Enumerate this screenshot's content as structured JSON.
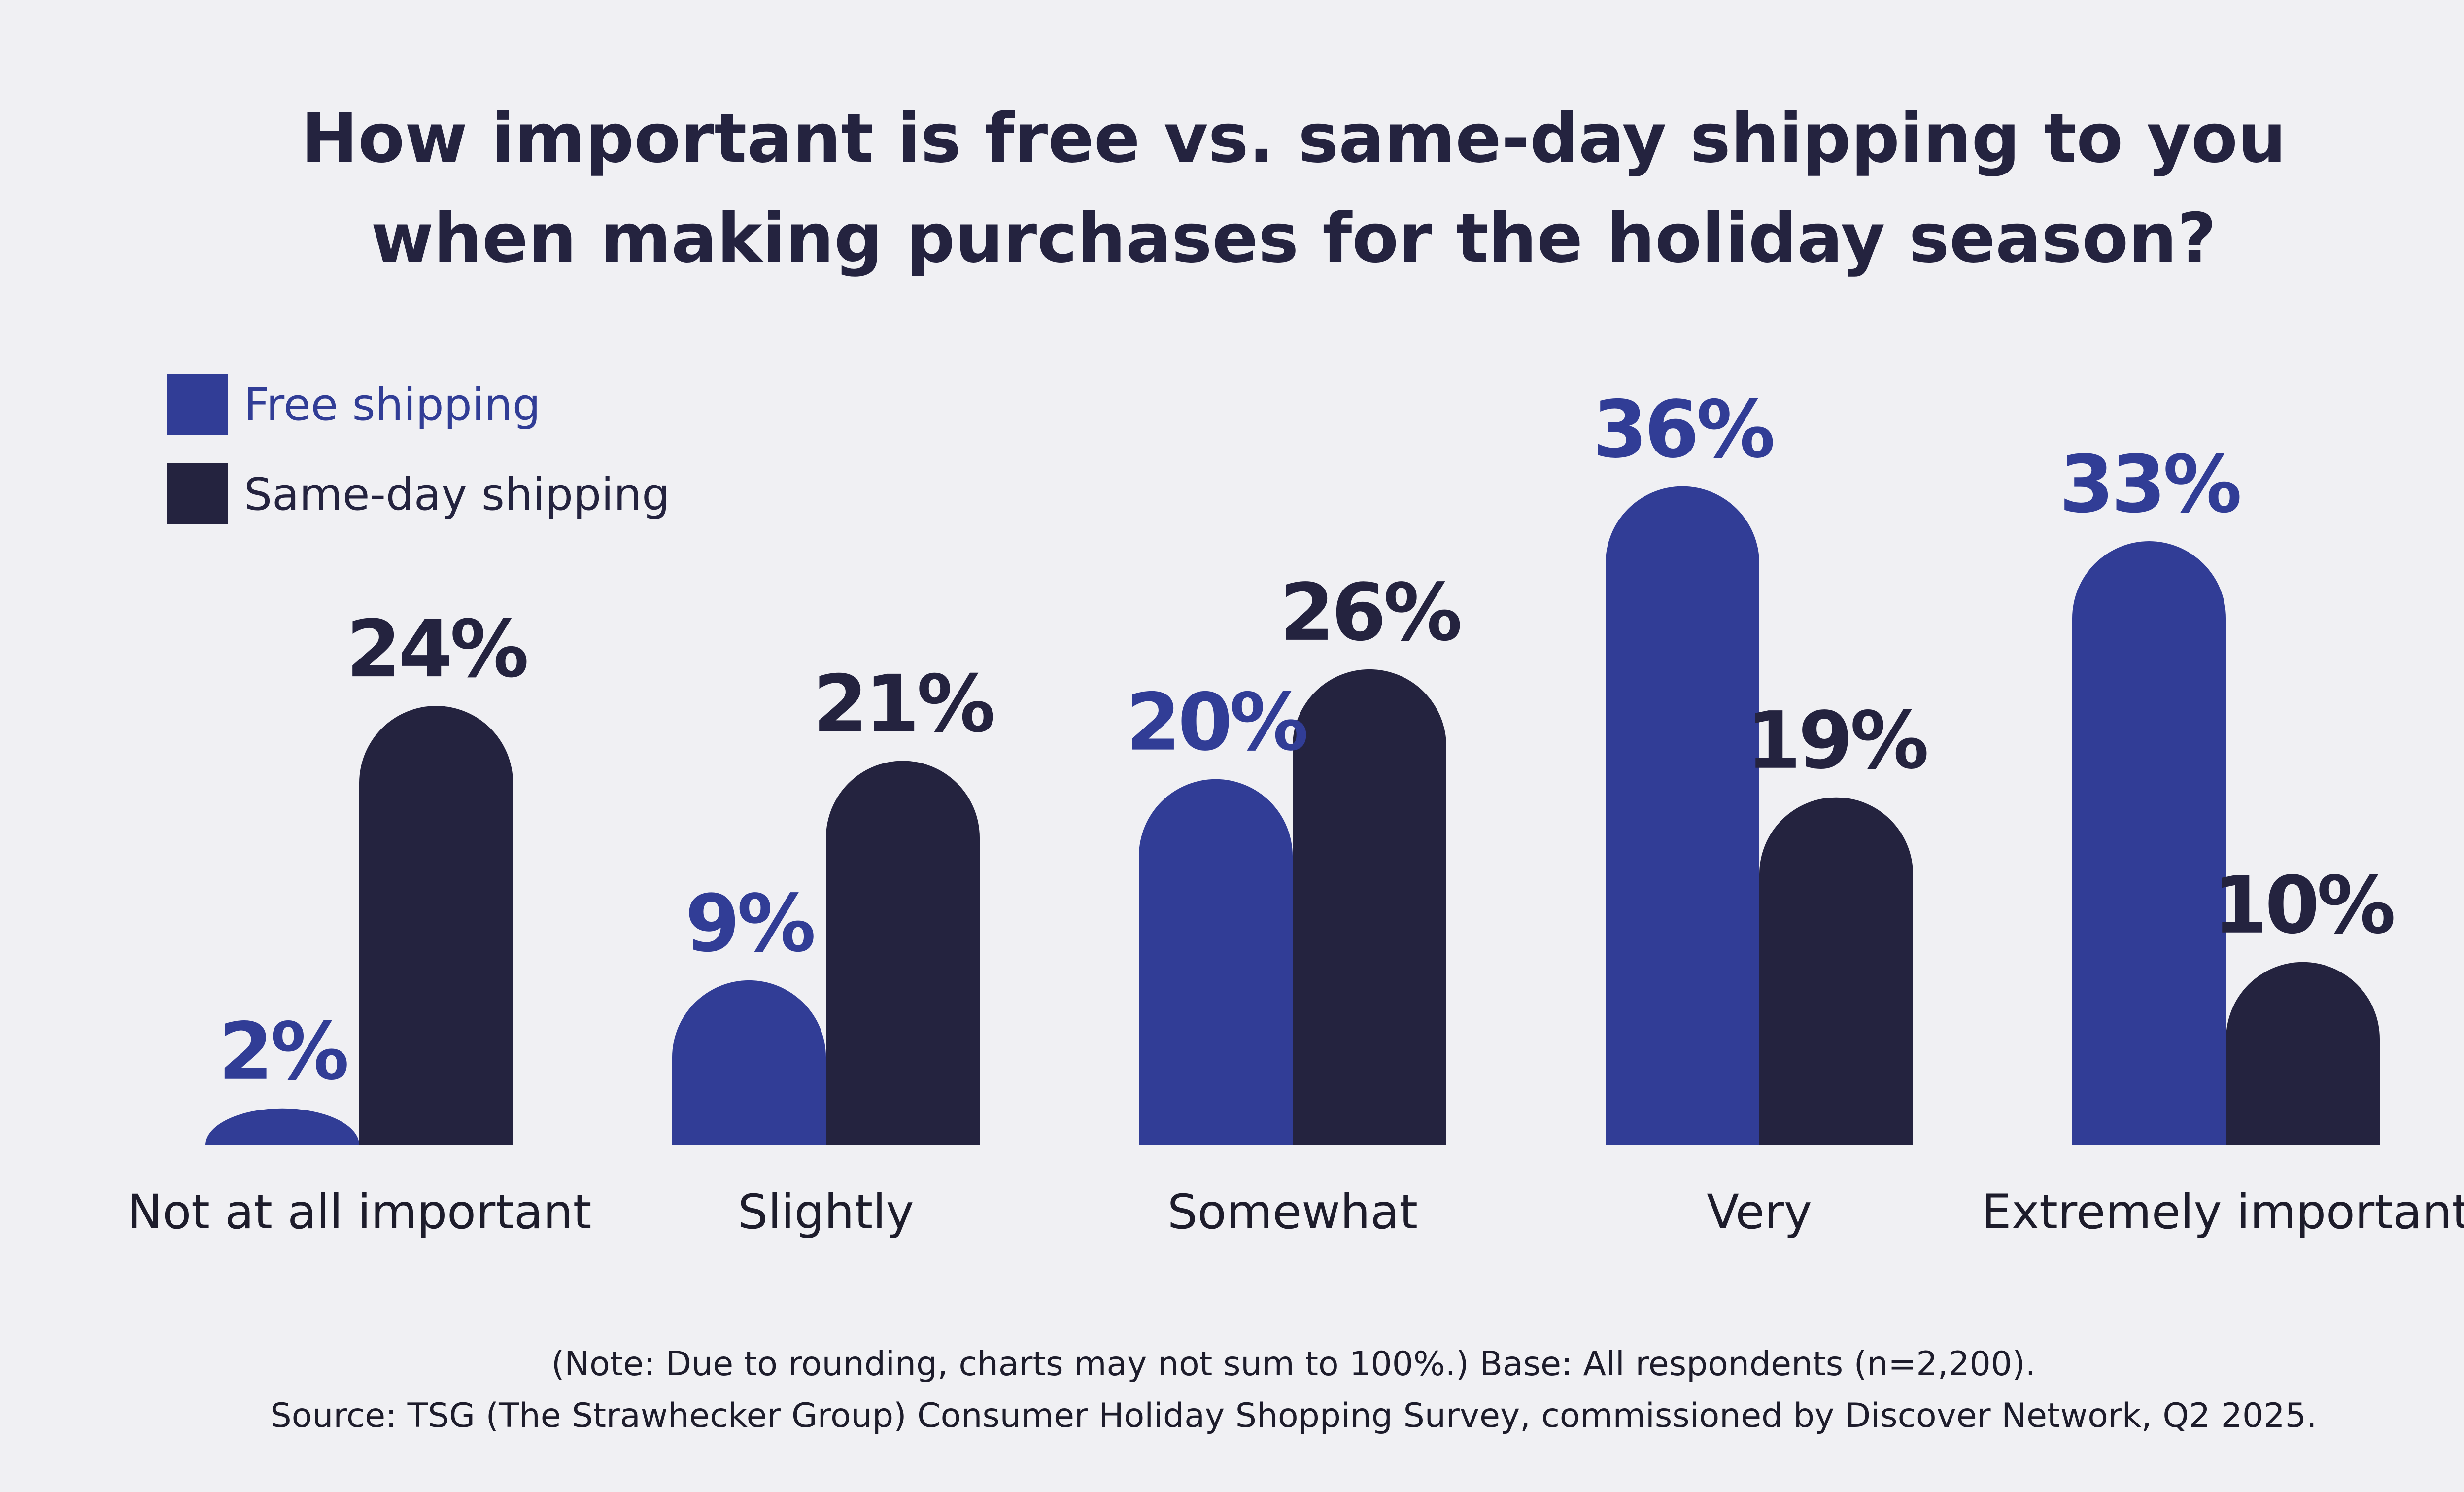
{
  "title_lines": [
    "How important is free vs. same-day shipping to you",
    "when making purchases for the holiday season?"
  ],
  "legend": [
    {
      "label": "Free shipping",
      "color": "#313d96"
    },
    {
      "label": "Same-day shipping",
      "color": "#24233f"
    }
  ],
  "chart_data": {
    "type": "bar",
    "categories": [
      "Not at all important",
      "Slightly",
      "Somewhat",
      "Very",
      "Extremely important"
    ],
    "series": [
      {
        "name": "Free shipping",
        "color": "#313d96",
        "values": [
          2,
          9,
          20,
          36,
          33
        ],
        "labels": [
          "2%",
          "9%",
          "20%",
          "36%",
          "33%"
        ]
      },
      {
        "name": "Same-day shipping",
        "color": "#24233f",
        "values": [
          24,
          21,
          26,
          19,
          10
        ],
        "labels": [
          "24%",
          "21%",
          "26%",
          "19%",
          "10%"
        ]
      }
    ],
    "ylim": [
      0,
      36
    ],
    "grid": false,
    "legend_position": "top-left"
  },
  "footnote_lines": [
    "(Note: Due to rounding, charts may not sum to 100%.) Base: All respondents (n=2,200).",
    "Source: TSG (The Strawhecker Group) Consumer Holiday Shopping Survey, commissioned by Discover Network, Q2 2025."
  ]
}
